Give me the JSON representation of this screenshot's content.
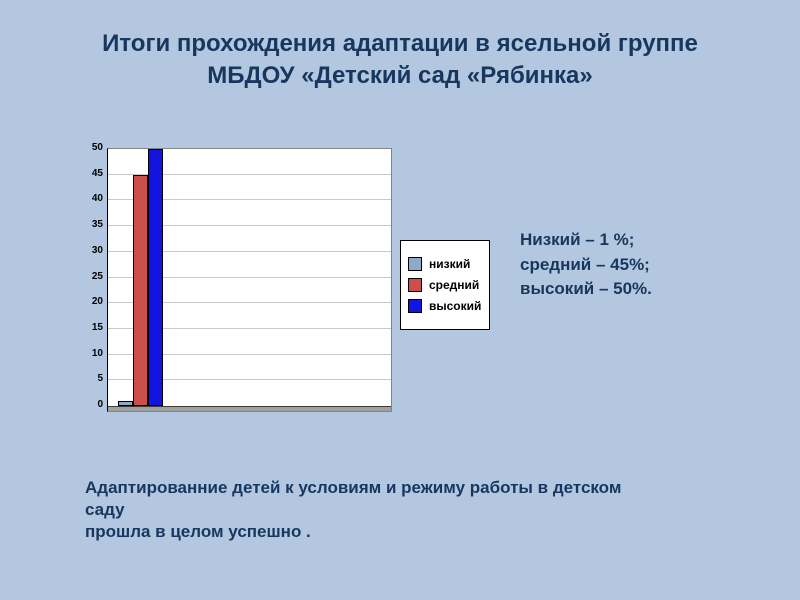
{
  "slide": {
    "title": [
      "Итоги прохождения адаптации в ясельной группе",
      "МБДОУ «Детский сад «Рябинка»"
    ],
    "stats": [
      "Низкий – 1 %;",
      "средний – 45%;",
      "высокий – 50%."
    ],
    "footer": [
      "Адаптированние  детей к условиям и режиму работы в детском",
      "саду",
      "прошла в целом успешно ."
    ]
  },
  "colors": {
    "background": "#b4c7e0",
    "title": "#17375e",
    "text": "#17375e"
  },
  "chart_data": {
    "type": "bar",
    "categories": [
      ""
    ],
    "series": [
      {
        "name": "низкий",
        "values": [
          1
        ],
        "color": "#8fa9cc"
      },
      {
        "name": "средний",
        "values": [
          45
        ],
        "color": "#cc4f4b"
      },
      {
        "name": "высокий",
        "values": [
          50
        ],
        "color": "#1414e0"
      }
    ],
    "ylim": [
      0,
      50
    ],
    "ytick_step": 5,
    "grid": true,
    "legend_position": "right",
    "legend_labels": [
      "низкий",
      "средний",
      "высокий"
    ]
  }
}
